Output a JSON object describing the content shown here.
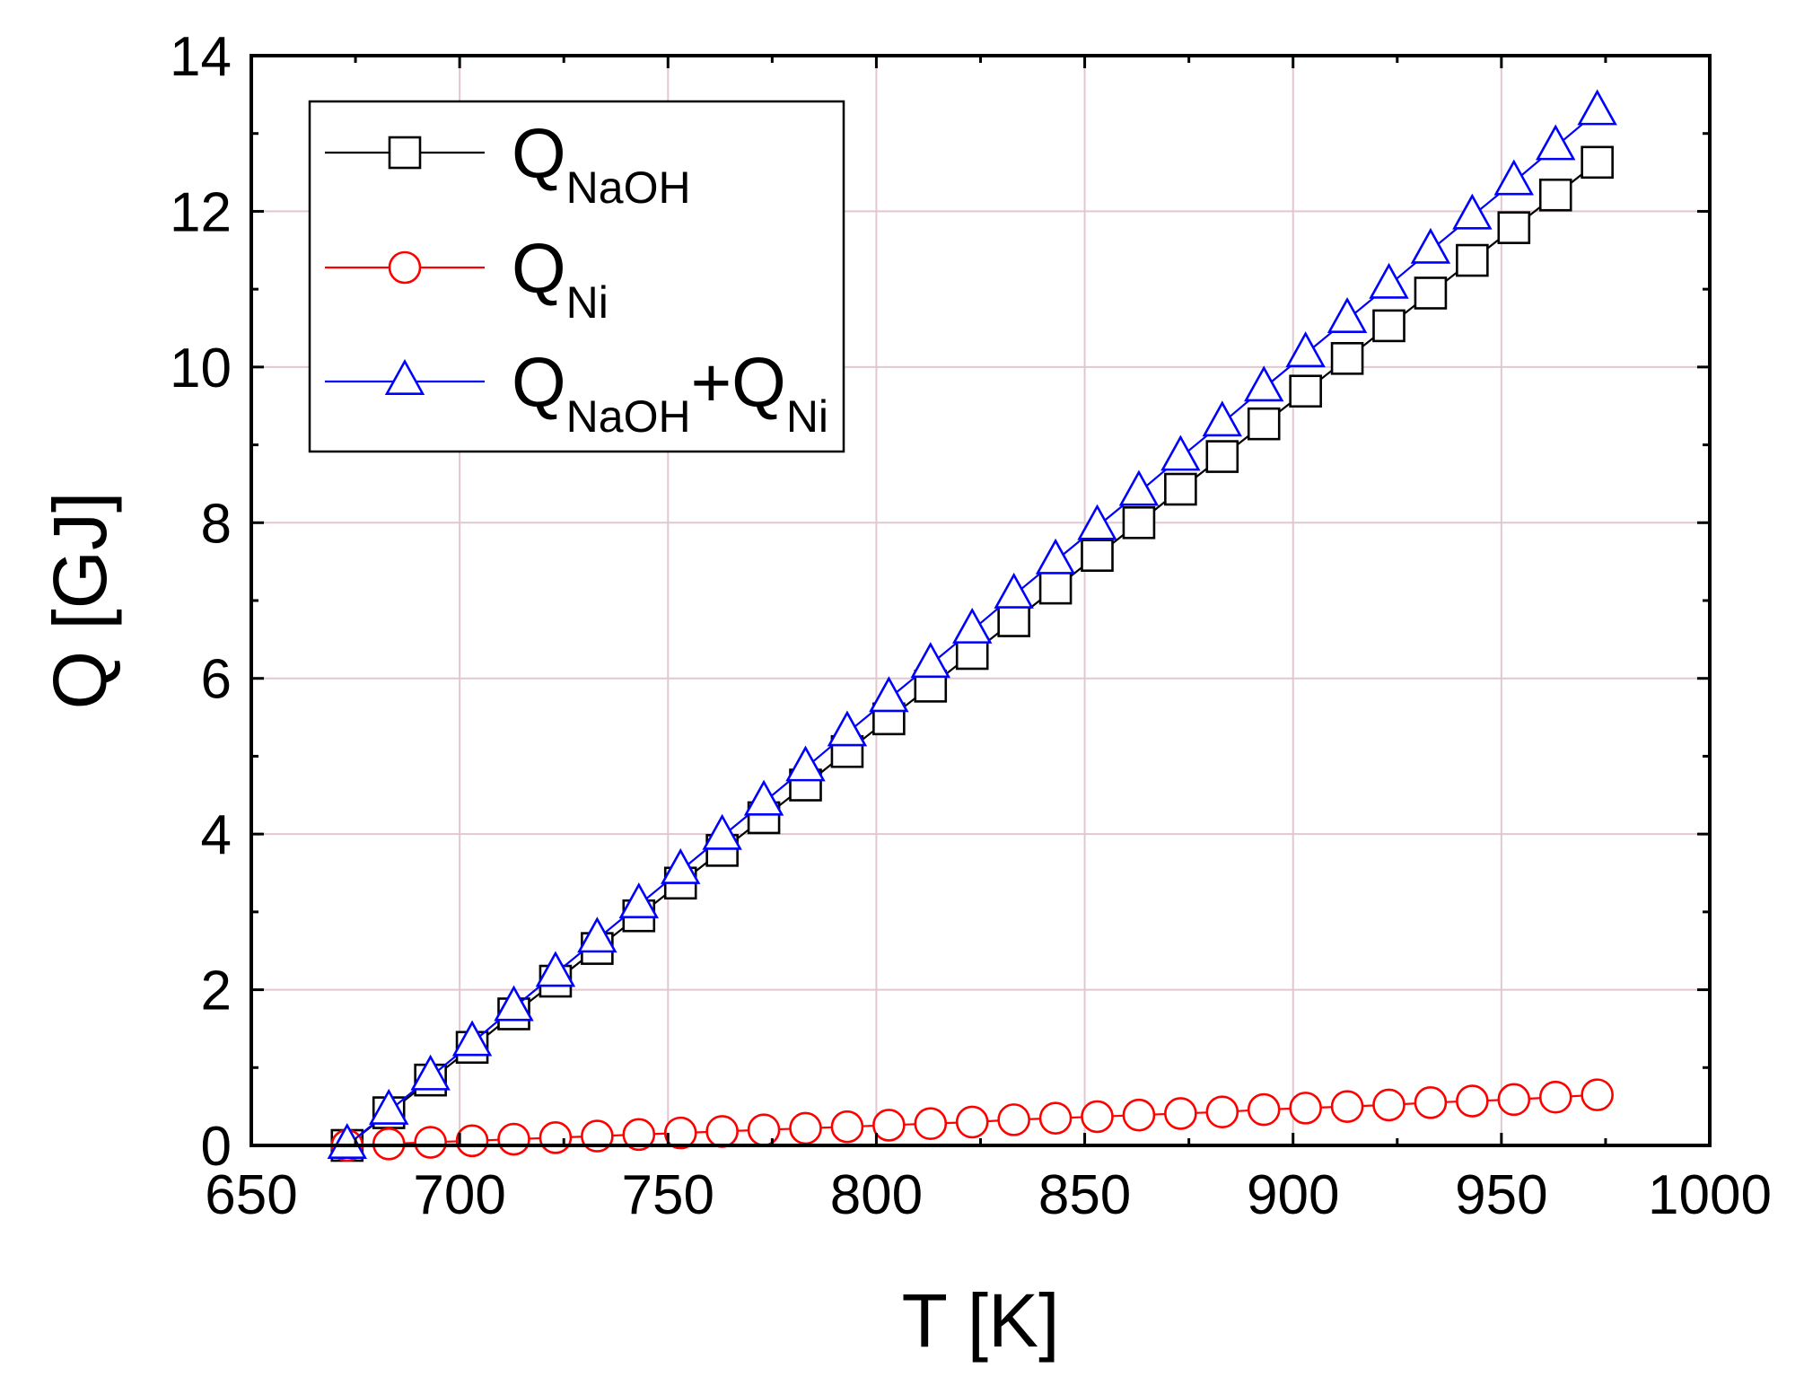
{
  "chart_data": {
    "type": "line",
    "title": "",
    "xlabel": "T [K]",
    "ylabel": "Q [GJ]",
    "xlim": [
      650,
      1000
    ],
    "ylim": [
      0,
      14
    ],
    "xticks": [
      650,
      700,
      750,
      800,
      850,
      900,
      950,
      1000
    ],
    "yticks": [
      0,
      2,
      4,
      6,
      8,
      10,
      12,
      14
    ],
    "grid": true,
    "legend_position": "top-left",
    "x": [
      673,
      683,
      693,
      703,
      713,
      723,
      733,
      743,
      753,
      763,
      773,
      783,
      793,
      803,
      813,
      823,
      833,
      843,
      853,
      863,
      873,
      883,
      893,
      903,
      913,
      923,
      933,
      943,
      953,
      963,
      973
    ],
    "series": [
      {
        "name": "QNaOH",
        "label_main": "Q",
        "label_sub": "NaOH",
        "marker": "square",
        "color": "#000000",
        "values": [
          0.0,
          0.42,
          0.84,
          1.26,
          1.69,
          2.11,
          2.53,
          2.95,
          3.37,
          3.79,
          4.21,
          4.63,
          5.06,
          5.48,
          5.9,
          6.32,
          6.74,
          7.16,
          7.58,
          8.0,
          8.43,
          8.85,
          9.27,
          9.69,
          10.11,
          10.53,
          10.95,
          11.37,
          11.79,
          12.21,
          12.63
        ]
      },
      {
        "name": "QNi",
        "label_main": "Q",
        "label_sub": "Ni",
        "marker": "circle",
        "color": "#ff0000",
        "values": [
          0.0,
          0.02,
          0.04,
          0.06,
          0.08,
          0.1,
          0.12,
          0.14,
          0.16,
          0.18,
          0.2,
          0.22,
          0.24,
          0.26,
          0.28,
          0.3,
          0.33,
          0.35,
          0.37,
          0.39,
          0.41,
          0.43,
          0.46,
          0.48,
          0.5,
          0.52,
          0.55,
          0.57,
          0.59,
          0.62,
          0.65
        ]
      },
      {
        "name": "QNaOH+QNi",
        "label_main": "Q",
        "label_sub": "NaOH",
        "label_main2": "+Q",
        "label_sub2": "Ni",
        "marker": "triangle",
        "color": "#0000ff",
        "values": [
          0.0,
          0.44,
          0.88,
          1.32,
          1.77,
          2.21,
          2.65,
          3.09,
          3.53,
          3.97,
          4.41,
          4.85,
          5.3,
          5.74,
          6.18,
          6.62,
          7.07,
          7.51,
          7.95,
          8.39,
          8.84,
          9.28,
          9.73,
          10.17,
          10.61,
          11.05,
          11.5,
          11.94,
          12.38,
          12.83,
          13.28
        ]
      }
    ]
  }
}
